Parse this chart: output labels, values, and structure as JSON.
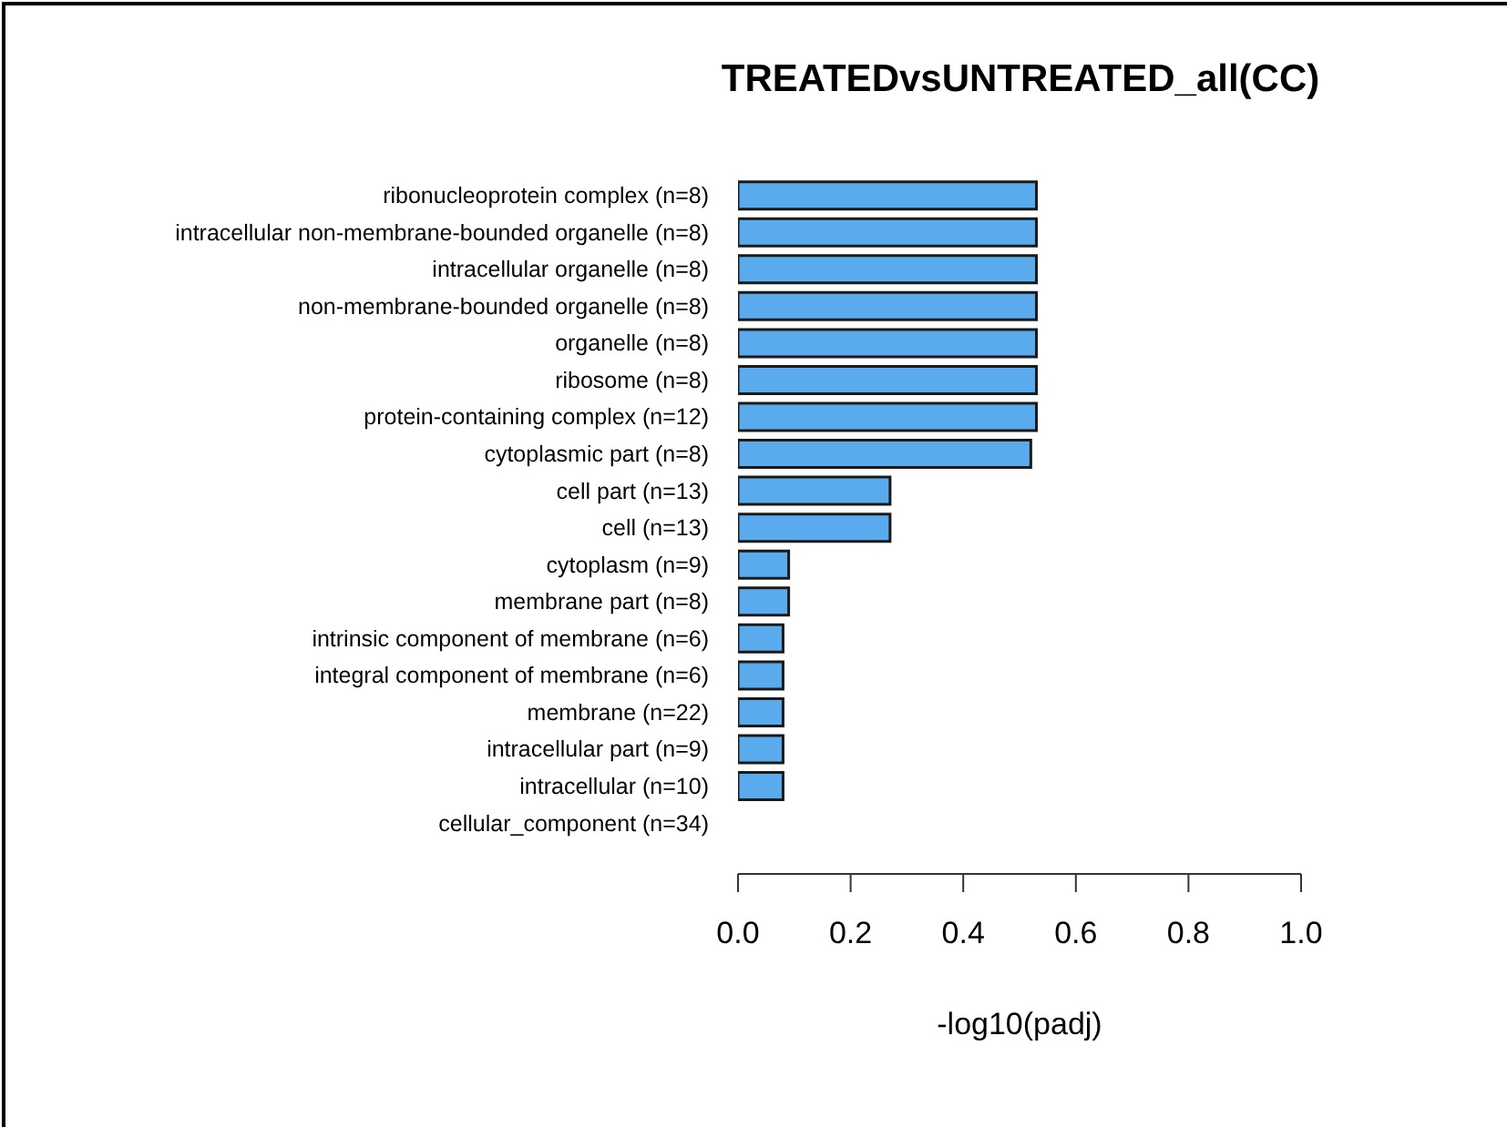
{
  "chart_data": {
    "type": "bar",
    "orientation": "horizontal",
    "title": "TREATEDvsUNTREATED_all(CC)",
    "xlabel": "-log10(padj)",
    "categories": [
      "ribonucleoprotein complex (n=8)",
      "intracellular non-membrane-bounded organelle (n=8)",
      "intracellular organelle (n=8)",
      "non-membrane-bounded organelle (n=8)",
      "organelle (n=8)",
      "ribosome (n=8)",
      "protein-containing complex (n=12)",
      "cytoplasmic part (n=8)",
      "cell part (n=13)",
      "cell (n=13)",
      "cytoplasm (n=9)",
      "membrane part (n=8)",
      "intrinsic component of membrane (n=6)",
      "integral component of membrane (n=6)",
      "membrane (n=22)",
      "intracellular part (n=9)",
      "intracellular (n=10)",
      "cellular_component (n=34)"
    ],
    "values": [
      0.53,
      0.53,
      0.53,
      0.53,
      0.53,
      0.53,
      0.53,
      0.52,
      0.27,
      0.27,
      0.09,
      0.09,
      0.08,
      0.08,
      0.08,
      0.08,
      0.08,
      0
    ],
    "color": "#5aaaee",
    "xlim": [
      0,
      1
    ],
    "xticks": [
      {
        "value": 0,
        "label": "0.0"
      },
      {
        "value": 0.2,
        "label": "0.2"
      },
      {
        "value": 0.4,
        "label": "0.4"
      },
      {
        "value": 0.6,
        "label": "0.6"
      },
      {
        "value": 0.8,
        "label": "0.8"
      },
      {
        "value": 1,
        "label": "1.0"
      }
    ],
    "grid": false,
    "legend": false
  }
}
